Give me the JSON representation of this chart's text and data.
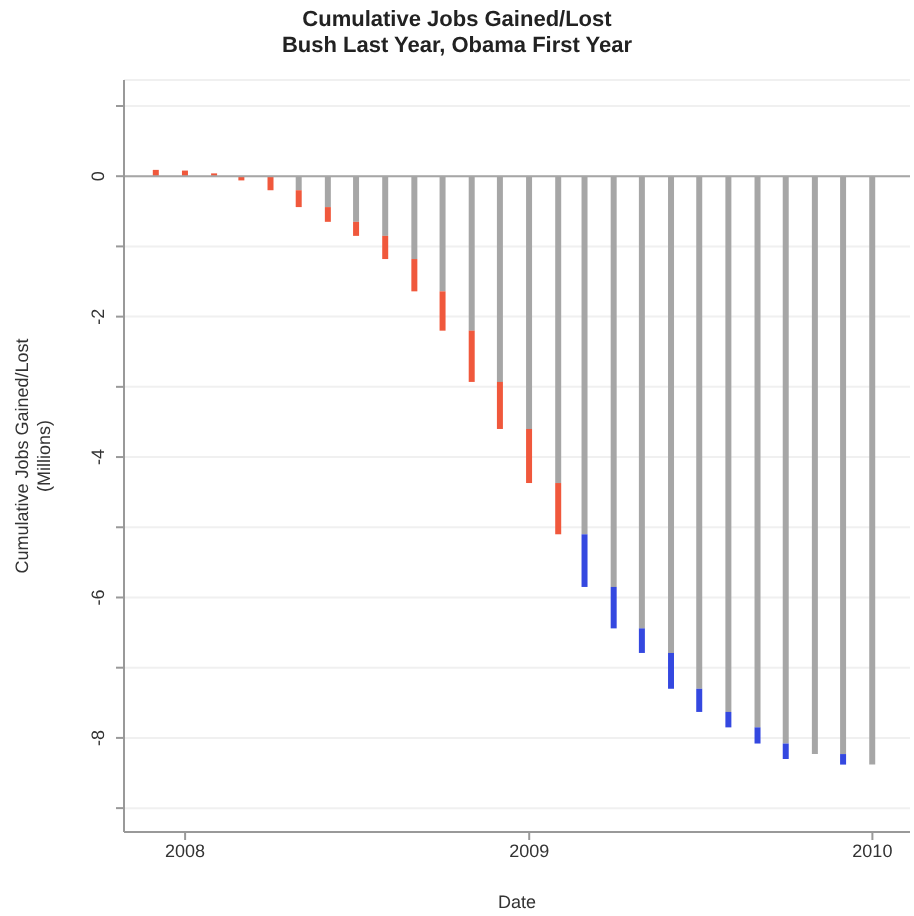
{
  "chart_data": {
    "type": "bar",
    "title": "Cumulative Jobs Gained/Lost",
    "subtitle": "Bush Last Year, Obama First Year",
    "xlabel": "Date",
    "ylabel": "Cumulative Jobs Gained/Lost\n(Millions)",
    "x": [
      "2007-12",
      "2008-01",
      "2008-02",
      "2008-03",
      "2008-04",
      "2008-05",
      "2008-06",
      "2008-07",
      "2008-08",
      "2008-09",
      "2008-10",
      "2008-11",
      "2008-12",
      "2009-01",
      "2009-02",
      "2009-03",
      "2009-04",
      "2009-05",
      "2009-06",
      "2009-07",
      "2009-08",
      "2009-09",
      "2009-10",
      "2009-11",
      "2009-12",
      "2010-01"
    ],
    "stacked": true,
    "series": [
      {
        "color": "#a6a6a6",
        "values": [
          null,
          null,
          null,
          null,
          null,
          -0.2,
          -0.44,
          -0.65,
          -0.85,
          -1.18,
          -1.64,
          -2.2,
          -2.93,
          -3.6,
          -4.37,
          -5.1,
          -5.85,
          -6.44,
          -6.79,
          -7.3,
          -7.63,
          -7.85,
          -8.08,
          -8.23,
          -8.23,
          -8.38
        ]
      },
      {
        "colors": [
          "#f0583c",
          "#f0583c",
          "#f0583c",
          "#f0583c",
          "#f0583c",
          "#f0583c",
          "#f0583c",
          "#f0583c",
          "#f0583c",
          "#f0583c",
          "#f0583c",
          "#f0583c",
          "#f0583c",
          "#f0583c",
          "#f0583c",
          "#3448e0",
          "#3448e0",
          "#3448e0",
          "#3448e0",
          "#3448e0",
          "#3448e0",
          "#3448e0",
          "#3448e0",
          "#3448e0",
          "#3448e0",
          "#3448e0"
        ],
        "values": [
          0.09,
          0.08,
          0.04,
          -0.06,
          -0.2,
          -0.24,
          -0.21,
          -0.2,
          -0.33,
          -0.46,
          -0.56,
          -0.73,
          -0.67,
          -0.77,
          -0.73,
          -0.75,
          -0.59,
          -0.35,
          -0.51,
          -0.33,
          -0.22,
          -0.23,
          -0.22,
          null,
          -0.15,
          null
        ]
      }
    ],
    "xlim": [
      "2007-10-28",
      "2010-02-10"
    ],
    "xticks": [
      "2008",
      "2009",
      "2010"
    ],
    "ylim": [
      -9.34,
      1.37
    ],
    "yticks": [
      {
        "value": 1,
        "label": null
      },
      0,
      {
        "value": -1,
        "label": null
      },
      -2,
      {
        "value": -3,
        "label": null
      },
      -4,
      {
        "value": -5,
        "label": null
      },
      -6,
      {
        "value": -7,
        "label": null
      },
      -8,
      {
        "value": -9,
        "label": null
      }
    ],
    "grid": "y",
    "ref_lines": [
      {
        "axis": "y",
        "value": 0,
        "color": "#a6a6a6"
      }
    ]
  }
}
